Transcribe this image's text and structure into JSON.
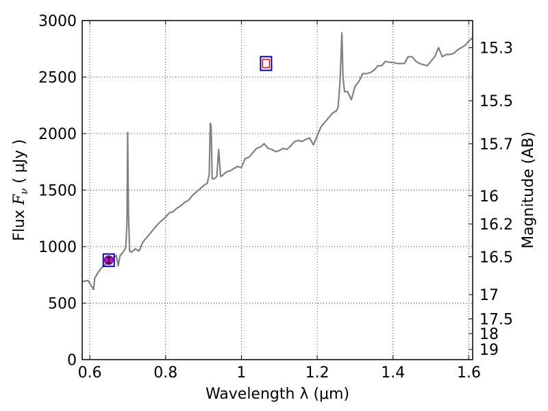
{
  "chart_data": {
    "type": "line",
    "xlabel": "Wavelength  λ (μm)",
    "ylabel": "Flux  F_ν  ( μJy )",
    "ylabel_right": "Magnitude (AB)",
    "xlim": [
      0.58,
      1.61
    ],
    "ylim": [
      0,
      3000
    ],
    "grid": true,
    "x_ticks": [
      0.6,
      0.8,
      1.0,
      1.2,
      1.4,
      1.6
    ],
    "x_tick_labels": [
      "0.6",
      "0.8",
      "1",
      "1.2",
      "1.4",
      "1.6"
    ],
    "y_ticks": [
      0,
      500,
      1000,
      1500,
      2000,
      2500,
      3000
    ],
    "y_tick_labels": [
      "0",
      "500",
      "1000",
      "1500",
      "2000",
      "2500",
      "3000"
    ],
    "right_ticks": [
      {
        "label": "15.3",
        "flux": 2760
      },
      {
        "label": "15.5",
        "flux": 2290
      },
      {
        "label": "15.7",
        "flux": 1910
      },
      {
        "label": "16",
        "flux": 1450
      },
      {
        "label": "16.2",
        "flux": 1200
      },
      {
        "label": "16.5",
        "flux": 910
      },
      {
        "label": "17",
        "flux": 575
      },
      {
        "label": "17.5",
        "flux": 360
      },
      {
        "label": "18",
        "flux": 230
      },
      {
        "label": "19",
        "flux": 90
      }
    ],
    "series": [
      {
        "color": "#808080",
        "x": [
          0.58,
          0.595,
          0.605,
          0.61,
          0.613,
          0.62,
          0.63,
          0.64,
          0.65,
          0.66,
          0.67,
          0.675,
          0.68,
          0.69,
          0.695,
          0.698,
          0.7,
          0.702,
          0.705,
          0.71,
          0.72,
          0.73,
          0.74,
          0.75,
          0.76,
          0.77,
          0.78,
          0.79,
          0.8,
          0.81,
          0.82,
          0.83,
          0.84,
          0.85,
          0.86,
          0.87,
          0.88,
          0.89,
          0.9,
          0.91,
          0.915,
          0.918,
          0.92,
          0.923,
          0.928,
          0.935,
          0.94,
          0.945,
          0.95,
          0.96,
          0.97,
          0.98,
          0.99,
          1.0,
          1.01,
          1.02,
          1.03,
          1.04,
          1.05,
          1.06,
          1.07,
          1.08,
          1.09,
          1.1,
          1.11,
          1.12,
          1.13,
          1.14,
          1.15,
          1.16,
          1.17,
          1.18,
          1.19,
          1.2,
          1.21,
          1.22,
          1.23,
          1.24,
          1.25,
          1.255,
          1.26,
          1.265,
          1.268,
          1.272,
          1.28,
          1.29,
          1.3,
          1.31,
          1.32,
          1.33,
          1.34,
          1.35,
          1.36,
          1.37,
          1.38,
          1.39,
          1.4,
          1.41,
          1.42,
          1.43,
          1.44,
          1.45,
          1.46,
          1.47,
          1.48,
          1.49,
          1.5,
          1.51,
          1.52,
          1.53,
          1.54,
          1.55,
          1.56,
          1.57,
          1.58,
          1.59,
          1.6,
          1.61
        ],
        "y": [
          690,
          700,
          650,
          620,
          720,
          760,
          810,
          840,
          870,
          900,
          920,
          830,
          920,
          960,
          990,
          1200,
          2010,
          1300,
          960,
          950,
          980,
          960,
          1040,
          1080,
          1120,
          1160,
          1200,
          1230,
          1260,
          1300,
          1310,
          1340,
          1360,
          1390,
          1410,
          1450,
          1480,
          1510,
          1540,
          1560,
          1640,
          2090,
          2070,
          1600,
          1600,
          1620,
          1860,
          1620,
          1630,
          1660,
          1670,
          1690,
          1710,
          1700,
          1780,
          1790,
          1830,
          1870,
          1880,
          1910,
          1870,
          1860,
          1840,
          1850,
          1870,
          1860,
          1890,
          1930,
          1940,
          1930,
          1950,
          1960,
          1900,
          1980,
          2060,
          2100,
          2140,
          2180,
          2200,
          2230,
          2450,
          2890,
          2500,
          2370,
          2370,
          2300,
          2420,
          2460,
          2530,
          2530,
          2540,
          2560,
          2600,
          2600,
          2640,
          2630,
          2630,
          2620,
          2620,
          2620,
          2680,
          2680,
          2640,
          2620,
          2610,
          2600,
          2640,
          2680,
          2760,
          2680,
          2700,
          2700,
          2710,
          2740,
          2760,
          2780,
          2820,
          2850
        ]
      }
    ],
    "markers": [
      {
        "x": 0.65,
        "y": 880,
        "kind": "photometry",
        "error": 25
      },
      {
        "x": 1.065,
        "y": 2620,
        "kind": "model"
      }
    ]
  }
}
